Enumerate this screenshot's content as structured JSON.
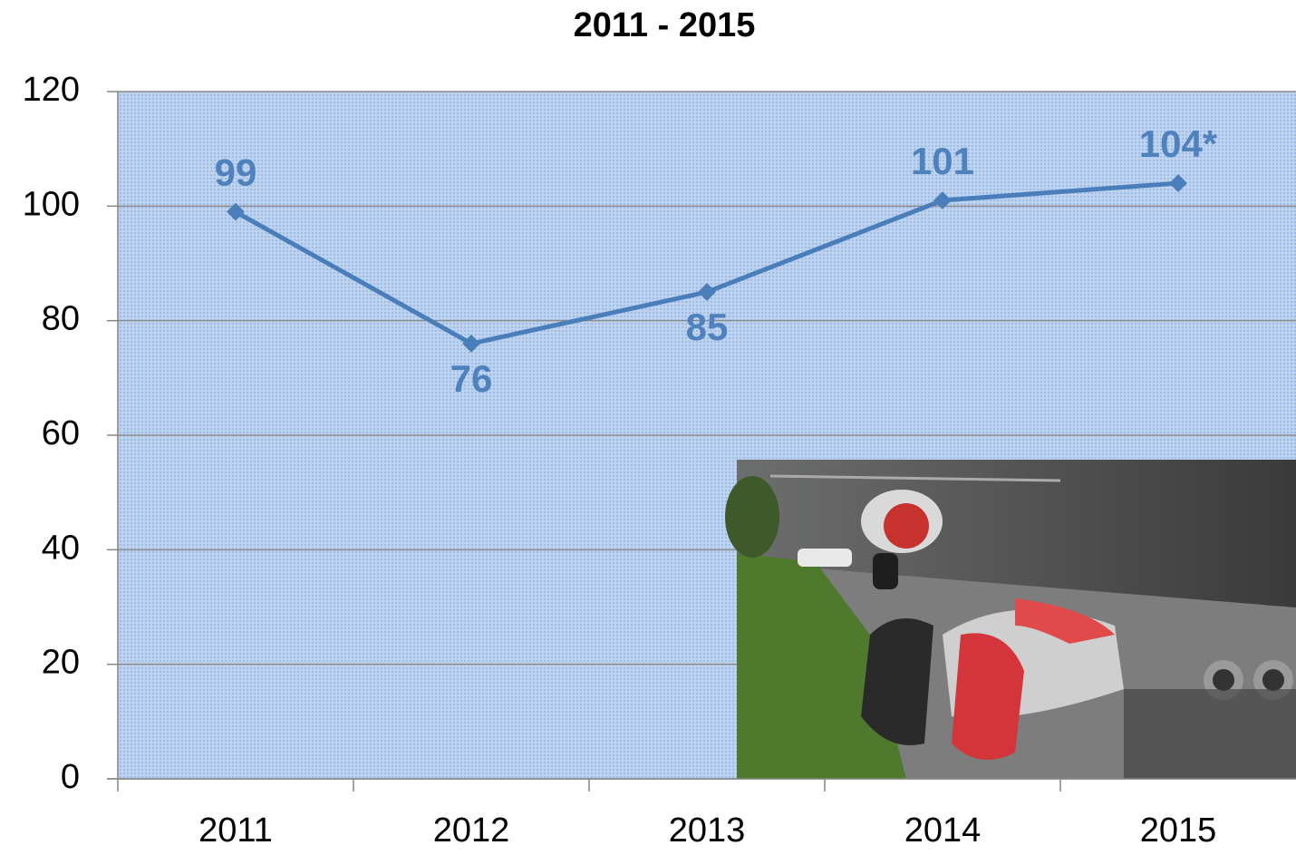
{
  "chart_data": {
    "type": "line",
    "title": "2011 - 2015",
    "categories": [
      "2011",
      "2012",
      "2013",
      "2014",
      "2015"
    ],
    "values": [
      99,
      76,
      85,
      101,
      104
    ],
    "value_labels": [
      "99",
      "76",
      "85",
      "101",
      "104*"
    ],
    "color": "#4a7ebb",
    "ylim": [
      0,
      120
    ],
    "yticks": [
      0,
      20,
      40,
      60,
      80,
      100,
      120
    ],
    "grid": true
  }
}
